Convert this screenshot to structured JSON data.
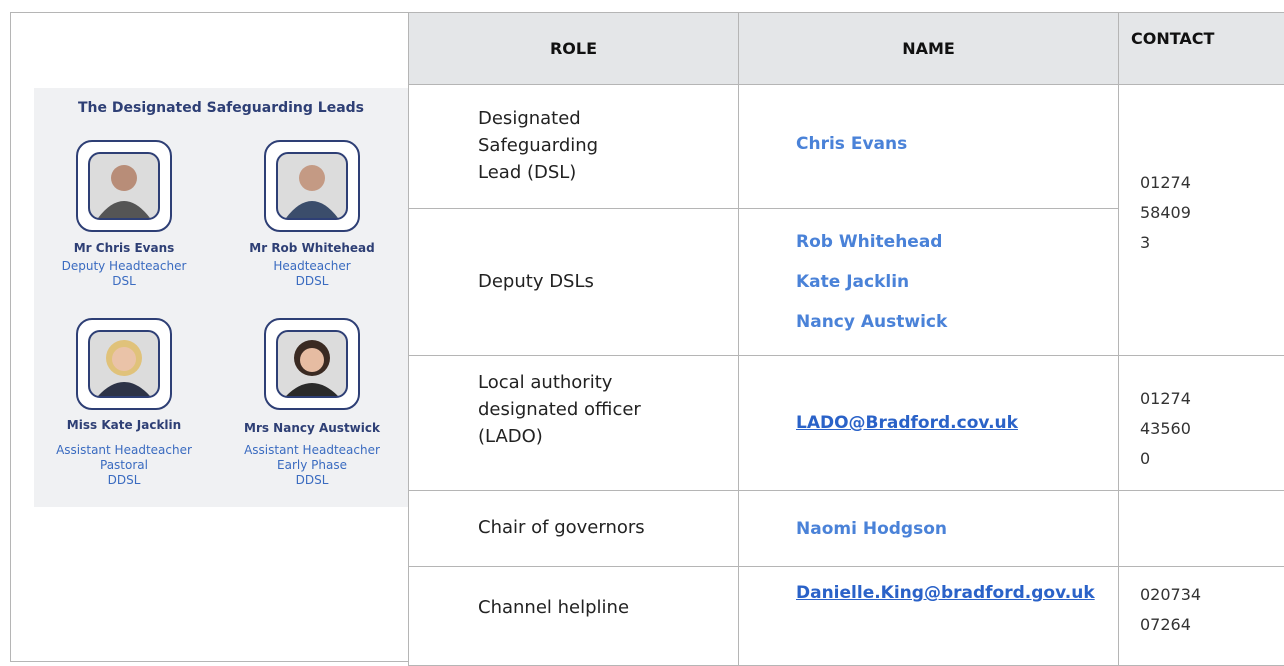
{
  "header": {
    "columns": [
      "ROLE",
      "NAME",
      "CONTACT"
    ]
  },
  "panel": {
    "title": "The Designated Safeguarding Leads",
    "people": [
      {
        "name": "Mr Chris Evans",
        "lines": [
          "Deputy Headteacher",
          "DSL"
        ]
      },
      {
        "name": "Mr Rob Whitehead",
        "lines": [
          "Headteacher",
          "DDSL"
        ]
      },
      {
        "name": "Miss Kate Jacklin",
        "lines": [
          "Assistant Headteacher",
          "Pastoral",
          "DDSL"
        ]
      },
      {
        "name": "Mrs Nancy Austwick",
        "lines": [
          "Assistant Headteacher",
          "Early Phase",
          "DDSL"
        ]
      }
    ]
  },
  "table": {
    "rows": [
      {
        "role": "Designated Safeguarding Lead (DSL)",
        "names": [
          "Chris Evans"
        ],
        "contact": "01274 584093"
      },
      {
        "role": "Deputy DSLs",
        "names": [
          "Rob Whitehead",
          "Kate Jacklin",
          "Nancy Austwick"
        ]
      },
      {
        "role": "Local authority designated officer (LADO)",
        "names": [
          "LADO@Bradford.cov.uk"
        ],
        "contact": "01274 435600"
      },
      {
        "role": "Chair of governors",
        "names": [
          "Naomi Hodgson"
        ]
      },
      {
        "role": "Channel helpline",
        "names": [
          "Danielle.King@bradford.gov.uk"
        ],
        "contact": "02073407264"
      }
    ]
  }
}
